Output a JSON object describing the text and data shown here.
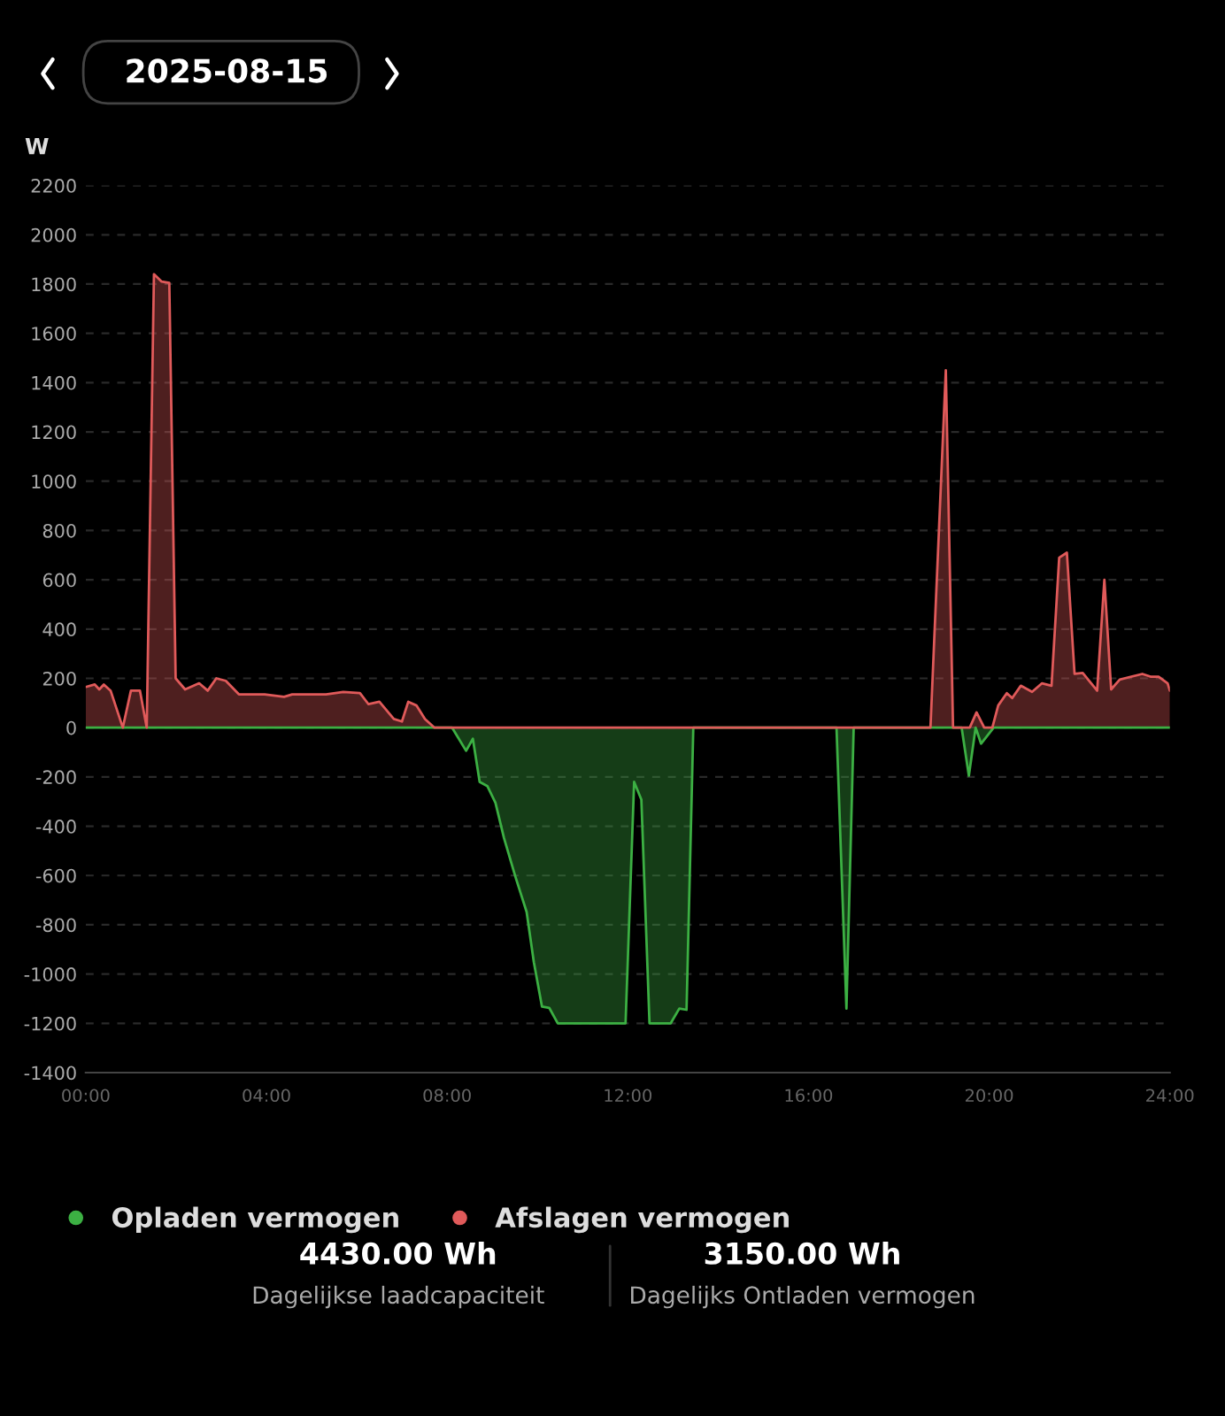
{
  "chart_data": {
    "type": "area",
    "title": "2025-08-15",
    "ylabel": "W",
    "series": [
      {
        "name": "Opladen vermogen",
        "color": "#3cb043",
        "x": [
          0,
          8.11,
          8.42,
          8.57,
          8.72,
          8.89,
          9.07,
          9.26,
          9.51,
          9.76,
          9.92,
          10.1,
          10.26,
          10.45,
          11.95,
          12.14,
          12.3,
          12.48,
          12.95,
          13.14,
          13.3,
          13.45,
          16.62,
          16.84,
          17.0,
          19.39,
          19.55,
          19.7,
          19.82,
          20.1,
          24
        ],
        "values": [
          0,
          0,
          -94,
          -45,
          -220,
          -237,
          -305,
          -449,
          -604,
          -748,
          -952,
          -1132,
          -1137,
          -1200,
          -1200,
          -220,
          -292,
          -1200,
          -1200,
          -1140,
          -1145,
          0,
          0,
          -1140,
          0,
          0,
          -195,
          0,
          -65,
          0,
          0
        ]
      },
      {
        "name": "Afslagen vermogen",
        "color": "#e05a5a",
        "x": [
          0,
          0.2,
          0.3,
          0.4,
          0.55,
          0.82,
          1.0,
          1.2,
          1.35,
          1.51,
          1.68,
          1.85,
          1.99,
          2.2,
          2.51,
          2.7,
          2.89,
          3.1,
          3.39,
          3.96,
          4.39,
          4.57,
          5.32,
          5.7,
          6.07,
          6.26,
          6.5,
          6.82,
          7.0,
          7.14,
          7.32,
          7.51,
          7.72,
          18.7,
          19.04,
          19.2,
          19.57,
          19.72,
          19.89,
          20.07,
          20.2,
          20.39,
          20.51,
          20.7,
          20.95,
          21.17,
          21.38,
          21.55,
          21.72,
          21.89,
          22.07,
          22.39,
          22.55,
          22.7,
          22.89,
          23.39,
          23.57,
          23.75,
          23.95,
          24
        ],
        "values": [
          165,
          175,
          155,
          175,
          150,
          0,
          150,
          150,
          0,
          1840,
          1810,
          1805,
          200,
          155,
          180,
          150,
          200,
          190,
          135,
          135,
          125,
          135,
          135,
          145,
          140,
          95,
          105,
          35,
          25,
          105,
          90,
          35,
          0,
          0,
          1450,
          0,
          0,
          62,
          0,
          0,
          90,
          140,
          120,
          170,
          145,
          180,
          170,
          690,
          710,
          218,
          222,
          150,
          600,
          155,
          195,
          218,
          207,
          207,
          180,
          150
        ]
      }
    ],
    "xlim": [
      0,
      24
    ],
    "xticks": [
      {
        "value": 0,
        "label": "00:00"
      },
      {
        "value": 4,
        "label": "04:00"
      },
      {
        "value": 8,
        "label": "08:00"
      },
      {
        "value": 12,
        "label": "12:00"
      },
      {
        "value": 16,
        "label": "16:00"
      },
      {
        "value": 20,
        "label": "20:00"
      },
      {
        "value": 24,
        "label": "24:00"
      }
    ],
    "ylim": [
      -1400,
      2200
    ],
    "yticks": [
      -1400,
      -1200,
      -1000,
      -800,
      -600,
      -400,
      -200,
      0,
      200,
      400,
      600,
      800,
      1000,
      1200,
      1400,
      1600,
      1800,
      2000,
      2200
    ],
    "grid": "y",
    "legend": "bottom left",
    "marker": "none",
    "line_style": "solid",
    "annotations": [
      "4430.00 Wh",
      "Dagelijkse laadcapaciteit",
      "3150.00 Wh",
      "Dagelijks Ontladen vermogen"
    ]
  }
}
